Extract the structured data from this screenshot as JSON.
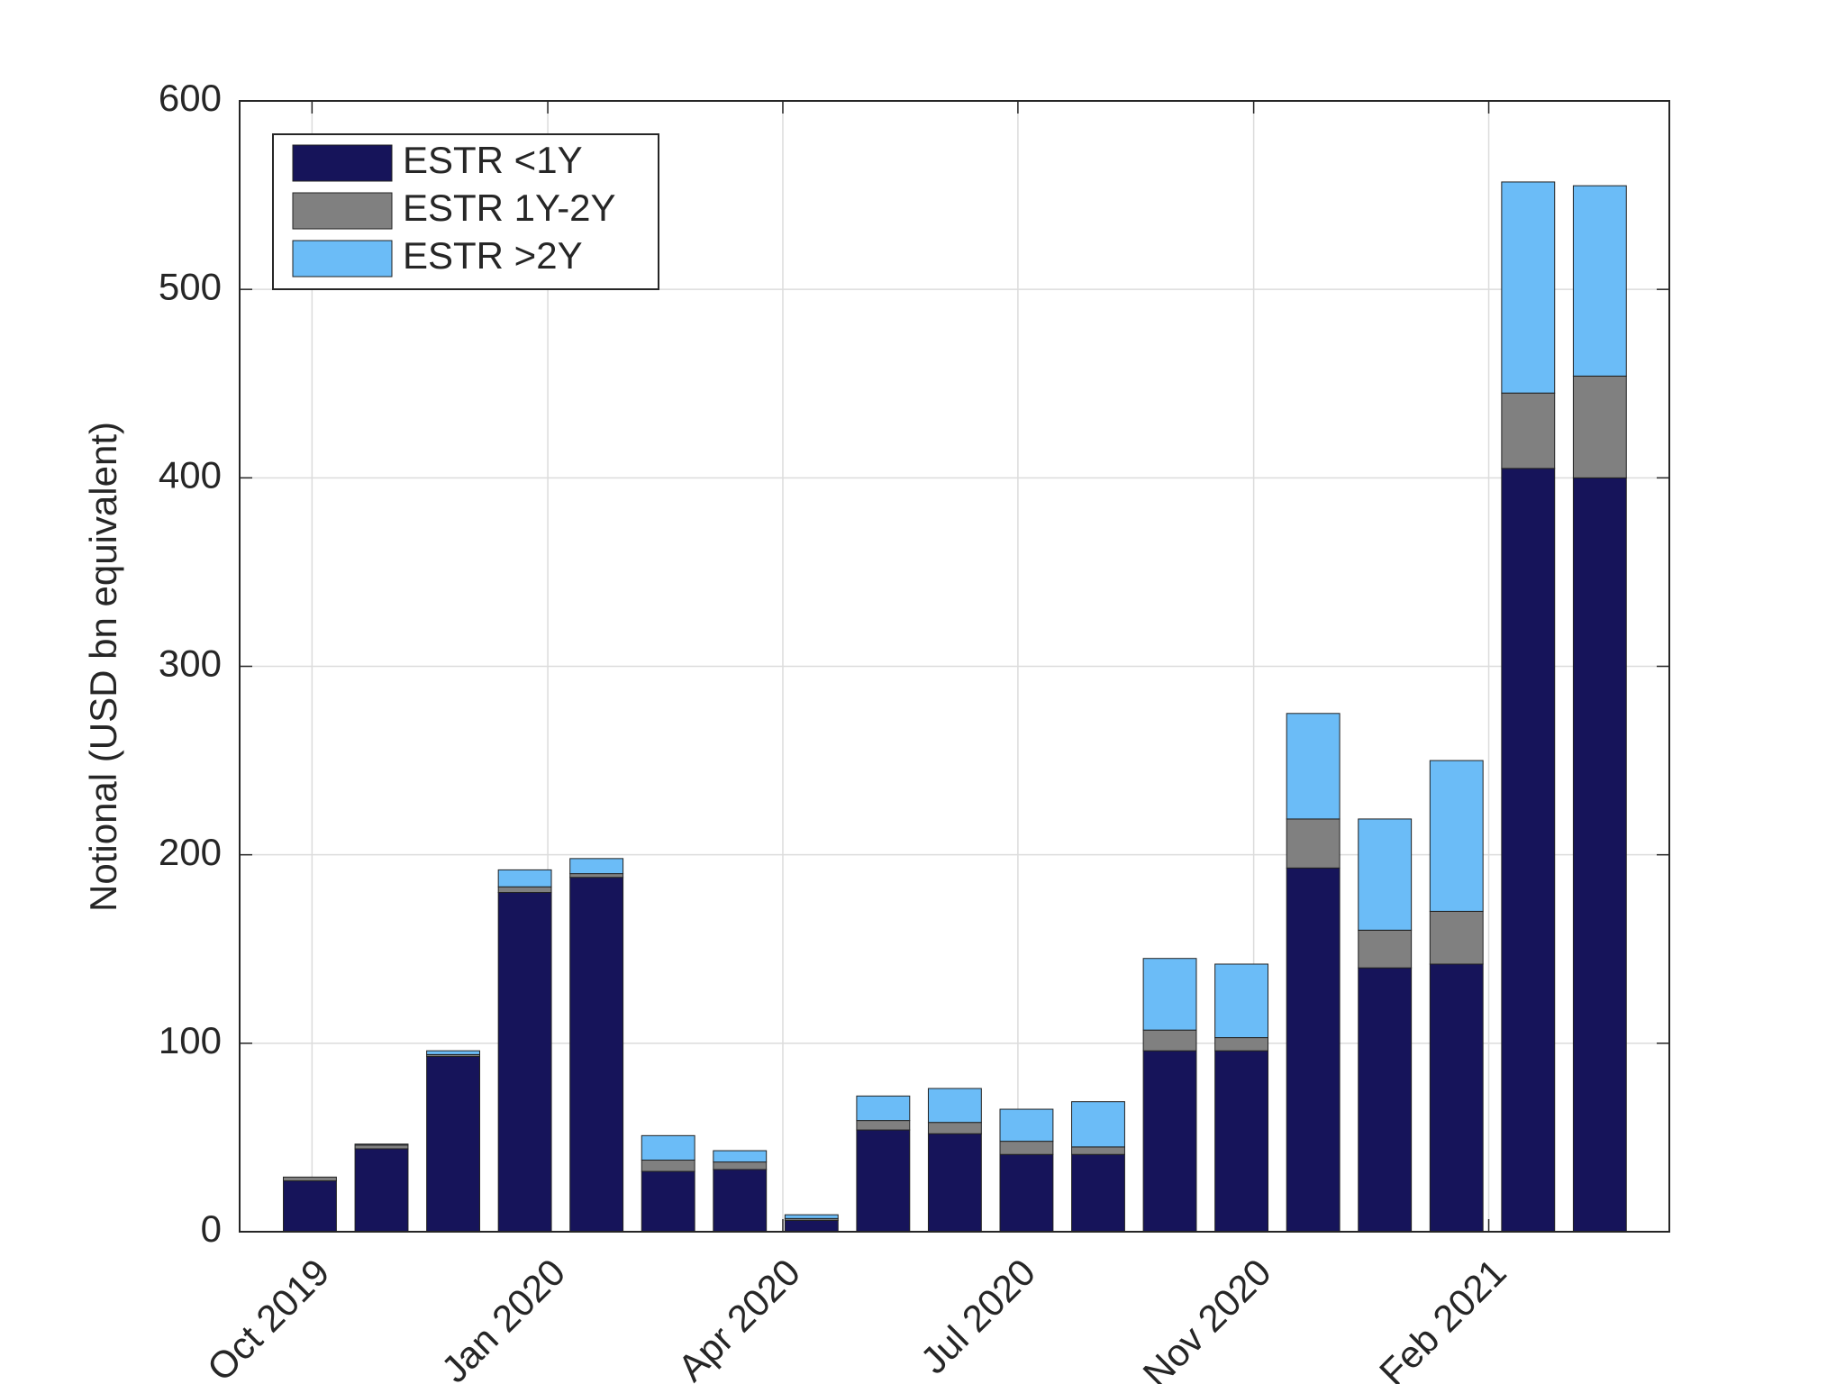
{
  "chart_data": {
    "type": "stacked_bar",
    "ylabel": "Notional (USD bn equivalent)",
    "x": [
      0,
      1,
      2,
      3,
      4,
      5,
      6,
      7,
      8,
      9,
      10,
      11,
      12,
      13,
      14,
      15,
      16,
      17,
      18
    ],
    "xlim": [
      -0.98,
      18.97
    ],
    "xticks": [
      {
        "value": 0.03,
        "label": "Oct 2019"
      },
      {
        "value": 3.32,
        "label": "Jan 2020"
      },
      {
        "value": 6.6,
        "label": "Apr 2020"
      },
      {
        "value": 9.88,
        "label": "Jul 2020"
      },
      {
        "value": 13.17,
        "label": "Nov 2020"
      },
      {
        "value": 16.45,
        "label": "Feb 2021"
      }
    ],
    "ylim": [
      0,
      600
    ],
    "yticks": [
      0,
      100,
      200,
      300,
      400,
      500,
      600
    ],
    "grid": true,
    "legend": "upper left",
    "series": [
      {
        "name": "ESTR <1Y",
        "color": "#16145a",
        "values": [
          27,
          44,
          93,
          180,
          188,
          32,
          33,
          6,
          54,
          52,
          41,
          41,
          96,
          96,
          193,
          140,
          142,
          405,
          400
        ]
      },
      {
        "name": "ESTR 1Y-2Y",
        "color": "#808080",
        "values": [
          2,
          2,
          1,
          3,
          2,
          6,
          4,
          1,
          5,
          6,
          7,
          4,
          11,
          7,
          26,
          20,
          28,
          40,
          54
        ]
      },
      {
        "name": "ESTR >2Y",
        "color": "#6bbcf7",
        "values": [
          0,
          0.5,
          2,
          9,
          8,
          13,
          6,
          2,
          13,
          18,
          17,
          24,
          38,
          39,
          56,
          59,
          80,
          112,
          101
        ]
      }
    ]
  }
}
